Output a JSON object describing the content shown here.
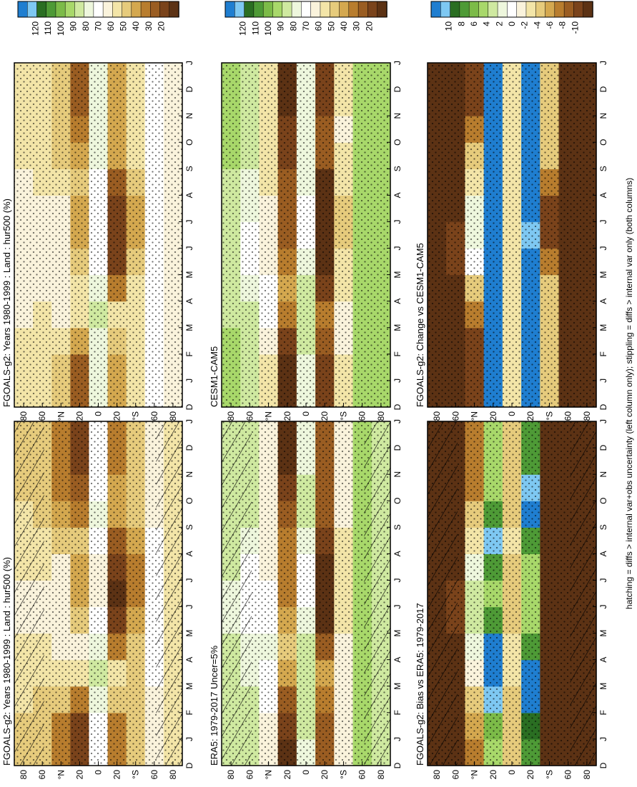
{
  "footer_note": "hatching = diffs > internal var+obs uncertainty (left column only); stippling = diffs > internal var only (both columns)",
  "months": [
    "J",
    "F",
    "M",
    "A",
    "M",
    "J",
    "J",
    "A",
    "S",
    "O",
    "N",
    "D",
    "J"
  ],
  "month_edge_label": "D",
  "lat_labels": [
    "80",
    "60",
    "°N",
    "20",
    "0",
    "20",
    "°S",
    "60",
    "80"
  ],
  "lat_values": [
    80,
    60,
    40,
    20,
    0,
    -20,
    -40,
    -60,
    -80
  ],
  "palettes": {
    "absolute": [
      "#1f7ed0",
      "#7ec8f2",
      "#2a6e22",
      "#4e9a36",
      "#7cbb48",
      "#a8d86a",
      "#cfe9a0",
      "#eef7dd",
      "#ffffff",
      "#faf3dc",
      "#f3e5a8",
      "#e6cb7c",
      "#d4a84f",
      "#b87d2e",
      "#9a5d22",
      "#7a431b",
      "#5c3214"
    ],
    "difference": [
      "#1f7ed0",
      "#7ec8f2",
      "#2a6e22",
      "#4e9a36",
      "#7cbb48",
      "#a8d86a",
      "#cfe9a0",
      "#eef7dd",
      "#ffffff",
      "#faf3dc",
      "#f3e5a8",
      "#e6cb7c",
      "#d4a84f",
      "#b87d2e",
      "#9a5d22",
      "#7a431b",
      "#5c3214"
    ]
  },
  "chart_data": [
    {
      "type": "heatmap",
      "title": "FGOALS-g2: Years 1980-1999 : Land : hur500 (%)",
      "x": [
        "J",
        "F",
        "M",
        "A",
        "M",
        "J",
        "J",
        "A",
        "S",
        "O",
        "N",
        "D",
        "J"
      ],
      "y": [
        80,
        60,
        40,
        20,
        0,
        -20,
        -40,
        -60,
        -80
      ],
      "colorbar_ticks": [
        "120",
        "110",
        "100",
        "90",
        "80",
        "70",
        "60",
        "50",
        "40",
        "30",
        "20"
      ],
      "colorbar_range": [
        20,
        120
      ],
      "values": [
        [
          55,
          55,
          56,
          58,
          60,
          62,
          62,
          60,
          58,
          56,
          55,
          55,
          55
        ],
        [
          54,
          53,
          55,
          57,
          60,
          63,
          63,
          61,
          58,
          55,
          54,
          54,
          54
        ],
        [
          40,
          42,
          50,
          60,
          66,
          65,
          64,
          62,
          55,
          48,
          42,
          40,
          40
        ],
        [
          28,
          30,
          42,
          58,
          62,
          50,
          44,
          46,
          50,
          40,
          32,
          28,
          28
        ],
        [
          70,
          72,
          76,
          80,
          78,
          70,
          65,
          66,
          72,
          74,
          72,
          70,
          70
        ],
        [
          40,
          42,
          50,
          56,
          40,
          28,
          24,
          26,
          34,
          46,
          44,
          40,
          40
        ],
        [
          52,
          52,
          54,
          55,
          52,
          46,
          42,
          42,
          46,
          52,
          54,
          52,
          52
        ],
        [
          66,
          66,
          67,
          68,
          69,
          70,
          70,
          69,
          68,
          67,
          66,
          66,
          66
        ],
        [
          58,
          58,
          58,
          58,
          58,
          58,
          58,
          58,
          58,
          58,
          58,
          58,
          58
        ]
      ]
    },
    {
      "type": "heatmap",
      "title": "ERA5: 1979-2017 Uncer=5%",
      "x": [
        "J",
        "F",
        "M",
        "A",
        "M",
        "J",
        "J",
        "A",
        "S",
        "O",
        "N",
        "D",
        "J"
      ],
      "y": [
        80,
        60,
        40,
        20,
        0,
        -20,
        -40,
        -60,
        -80
      ],
      "colorbar_ticks": [
        "120",
        "110",
        "100",
        "90",
        "80",
        "70",
        "60",
        "50",
        "40",
        "30",
        "20"
      ],
      "colorbar_range": [
        20,
        120
      ],
      "values": [
        [
          84,
          84,
          83,
          82,
          80,
          78,
          78,
          80,
          82,
          83,
          84,
          84,
          84
        ],
        [
          82,
          82,
          80,
          78,
          74,
          70,
          70,
          72,
          76,
          80,
          82,
          82,
          82
        ],
        [
          62,
          64,
          68,
          72,
          74,
          70,
          68,
          66,
          64,
          62,
          62,
          62,
          62
        ],
        [
          24,
          26,
          34,
          46,
          52,
          44,
          40,
          40,
          42,
          34,
          28,
          24,
          24
        ],
        [
          78,
          80,
          82,
          84,
          82,
          76,
          72,
          72,
          76,
          80,
          80,
          78,
          78
        ],
        [
          34,
          34,
          40,
          44,
          34,
          24,
          20,
          22,
          28,
          36,
          36,
          34,
          34
        ],
        [
          62,
          62,
          64,
          64,
          62,
          58,
          56,
          56,
          58,
          62,
          64,
          62,
          62
        ],
        [
          86,
          86,
          86,
          86,
          86,
          86,
          86,
          86,
          86,
          86,
          86,
          86,
          86
        ],
        [
          84,
          84,
          84,
          84,
          84,
          84,
          84,
          84,
          84,
          84,
          84,
          84,
          84
        ]
      ]
    },
    {
      "type": "heatmap",
      "title": "FGOALS-g2: Bias vs ERA5: 1979-2017",
      "x": [
        "J",
        "F",
        "M",
        "A",
        "M",
        "J",
        "J",
        "A",
        "S",
        "O",
        "N",
        "D",
        "J"
      ],
      "y": [
        80,
        60,
        40,
        20,
        0,
        -20,
        -40,
        -60,
        -80
      ],
      "colorbar_ticks": [
        "10",
        "8",
        "6",
        "4",
        "2",
        "0",
        "-2",
        "-4",
        "-6",
        "-8",
        "-10"
      ],
      "colorbar_range": [
        -10,
        10
      ],
      "values": [
        [
          -14,
          -14,
          -13,
          -12,
          -10,
          -9,
          -9,
          -10,
          -12,
          -13,
          -14,
          -14,
          -14
        ],
        [
          -14,
          -14,
          -13,
          -12,
          -10,
          -8,
          -8,
          -9,
          -12,
          -13,
          -14,
          -14,
          -14
        ],
        [
          -6,
          -5,
          -3,
          -1,
          1,
          2,
          2,
          1,
          -2,
          -4,
          -6,
          -6,
          -6
        ],
        [
          4,
          5,
          8,
          11,
          10,
          6,
          4,
          6,
          8,
          6,
          4,
          4,
          4
        ],
        [
          -4,
          -4,
          -3,
          -2,
          -2,
          -3,
          -4,
          -3,
          -2,
          -3,
          -4,
          -4,
          -4
        ],
        [
          6,
          7,
          10,
          12,
          6,
          4,
          4,
          4,
          6,
          10,
          8,
          6,
          6
        ],
        [
          -10,
          -10,
          -10,
          -9,
          -10,
          -12,
          -14,
          -14,
          -12,
          -10,
          -10,
          -10,
          -10
        ],
        [
          -20,
          -20,
          -19,
          -18,
          -17,
          -16,
          -16,
          -17,
          -18,
          -19,
          -20,
          -20,
          -20
        ],
        [
          -26,
          -26,
          -26,
          -26,
          -26,
          -26,
          -26,
          -26,
          -26,
          -26,
          -26,
          -26,
          -26
        ]
      ]
    },
    {
      "type": "heatmap",
      "title": "FGOALS-g2: Years 1980-1999 : Land : hur500 (%)",
      "x": [
        "J",
        "F",
        "M",
        "A",
        "M",
        "J",
        "J",
        "A",
        "S",
        "O",
        "N",
        "D",
        "J"
      ],
      "y": [
        80,
        60,
        40,
        20,
        0,
        -20,
        -40,
        -60,
        -80
      ],
      "colorbar_ticks": [
        "120",
        "110",
        "100",
        "90",
        "80",
        "70",
        "60",
        "50",
        "40",
        "30",
        "20"
      ],
      "colorbar_range": [
        20,
        120
      ],
      "values": [
        [
          60,
          60,
          61,
          62,
          63,
          64,
          64,
          63,
          62,
          61,
          60,
          60,
          60
        ],
        [
          58,
          58,
          59,
          61,
          63,
          64,
          64,
          63,
          61,
          59,
          58,
          58,
          58
        ],
        [
          50,
          52,
          56,
          62,
          66,
          66,
          65,
          63,
          58,
          54,
          50,
          50,
          50
        ],
        [
          34,
          36,
          44,
          56,
          60,
          52,
          46,
          48,
          50,
          44,
          38,
          34,
          34
        ],
        [
          74,
          76,
          78,
          80,
          78,
          72,
          68,
          68,
          72,
          76,
          76,
          74,
          74
        ],
        [
          44,
          46,
          52,
          56,
          42,
          30,
          26,
          28,
          36,
          48,
          48,
          44,
          44
        ],
        [
          56,
          56,
          58,
          58,
          56,
          50,
          46,
          46,
          50,
          56,
          58,
          56,
          56
        ],
        [
          68,
          68,
          68,
          68,
          68,
          68,
          68,
          68,
          68,
          68,
          68,
          68,
          68
        ],
        [
          62,
          62,
          62,
          62,
          62,
          62,
          62,
          62,
          62,
          62,
          62,
          62,
          62
        ]
      ]
    },
    {
      "type": "heatmap",
      "title": "CESM1-CAM5",
      "x": [
        "J",
        "F",
        "M",
        "A",
        "M",
        "J",
        "J",
        "A",
        "S",
        "O",
        "N",
        "D",
        "J"
      ],
      "y": [
        80,
        60,
        40,
        20,
        0,
        -20,
        -40,
        -60,
        -80
      ],
      "colorbar_ticks": [
        "120",
        "110",
        "100",
        "90",
        "80",
        "70",
        "60",
        "50",
        "40",
        "30",
        "20"
      ],
      "colorbar_range": [
        20,
        120
      ],
      "values": [
        [
          86,
          86,
          85,
          84,
          82,
          80,
          80,
          82,
          84,
          85,
          86,
          86,
          86
        ],
        [
          84,
          84,
          82,
          80,
          76,
          72,
          72,
          74,
          78,
          82,
          84,
          84,
          84
        ],
        [
          58,
          60,
          64,
          68,
          70,
          66,
          64,
          62,
          60,
          58,
          58,
          58,
          58
        ],
        [
          22,
          24,
          30,
          40,
          46,
          38,
          34,
          34,
          36,
          30,
          26,
          22,
          22
        ],
        [
          76,
          78,
          80,
          82,
          80,
          74,
          70,
          70,
          74,
          78,
          78,
          76,
          76
        ],
        [
          30,
          30,
          34,
          38,
          28,
          20,
          18,
          18,
          24,
          32,
          32,
          30,
          30
        ],
        [
          60,
          60,
          62,
          62,
          60,
          56,
          54,
          54,
          56,
          60,
          62,
          60,
          60
        ],
        [
          88,
          88,
          88,
          88,
          88,
          88,
          88,
          88,
          88,
          88,
          88,
          88,
          88
        ],
        [
          86,
          86,
          86,
          86,
          86,
          86,
          86,
          86,
          86,
          86,
          86,
          86,
          86
        ]
      ]
    },
    {
      "type": "heatmap",
      "title": "FGOALS-g2: Change vs CESM1-CAM5",
      "x": [
        "J",
        "F",
        "M",
        "A",
        "M",
        "J",
        "J",
        "A",
        "S",
        "O",
        "N",
        "D",
        "J"
      ],
      "y": [
        80,
        60,
        40,
        20,
        0,
        -20,
        -40,
        -60,
        -80
      ],
      "colorbar_ticks": [
        "10",
        "8",
        "6",
        "4",
        "2",
        "0",
        "-2",
        "-4",
        "-6",
        "-8",
        "-10"
      ],
      "colorbar_range": [
        -10,
        10
      ],
      "values": [
        [
          -26,
          -26,
          -24,
          -22,
          -19,
          -16,
          -16,
          -19,
          -22,
          -24,
          -26,
          -26,
          -26
        ],
        [
          -26,
          -26,
          -23,
          -19,
          -13,
          -8,
          -8,
          -11,
          -17,
          -23,
          -26,
          -26,
          -26
        ],
        [
          -8,
          -8,
          -8,
          -6,
          -4,
          0,
          1,
          1,
          -2,
          -4,
          -6,
          -8,
          -8
        ],
        [
          12,
          12,
          14,
          16,
          14,
          14,
          12,
          14,
          14,
          14,
          12,
          12,
          12
        ],
        [
          -2,
          -2,
          -2,
          -2,
          -2,
          -2,
          -2,
          -2,
          -2,
          -2,
          -2,
          -2,
          -2
        ],
        [
          14,
          16,
          18,
          18,
          14,
          10,
          8,
          10,
          12,
          16,
          16,
          14,
          14
        ],
        [
          -4,
          -4,
          -4,
          -4,
          -4,
          -6,
          -8,
          -8,
          -6,
          -4,
          -4,
          -4,
          -4
        ],
        [
          -20,
          -20,
          -20,
          -20,
          -19,
          -18,
          -18,
          -19,
          -20,
          -20,
          -20,
          -20,
          -20
        ],
        [
          -24,
          -24,
          -24,
          -24,
          -24,
          -24,
          -24,
          -24,
          -24,
          -24,
          -24,
          -24,
          -24
        ]
      ]
    }
  ]
}
